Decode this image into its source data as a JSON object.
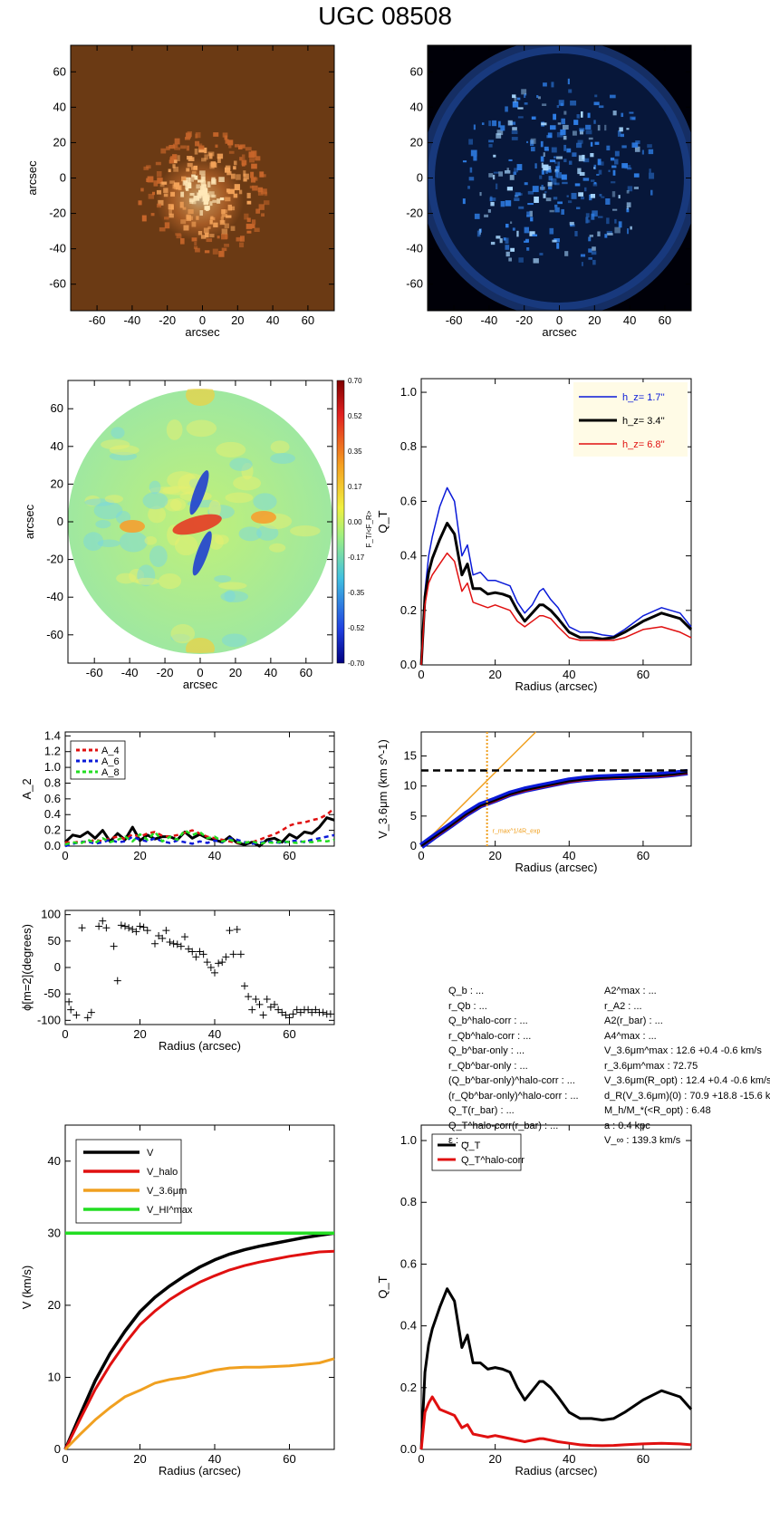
{
  "title": "UGC 08508",
  "colors": {
    "black": "#000000",
    "blue": "#0a1ad8",
    "red": "#e01010",
    "orange": "#f0a020",
    "green": "#22dd22",
    "legend_bg": "#fffbe6"
  },
  "info": {
    "left": [
      "Q_b : ...",
      "r_Qb : ...",
      "Q_b^halo-corr : ...",
      "r_Qb^halo-corr : ...",
      "Q_b^bar-only : ...",
      "r_Qb^bar-only : ...",
      "(Q_b^bar-only)^halo-corr : ...",
      "(r_Qb^bar-only)^halo-corr : ...",
      "Q_T(r_bar) : ...",
      "Q_T^halo-corr(r_bar) : ...",
      "ε : ..."
    ],
    "right": [
      "A2^max : ...",
      "r_A2 : ...",
      "A2(r_bar) : ...",
      "A4^max : ...",
      "V_3.6μm^max : 12.6 +0.4 -0.6 km/s",
      "r_3.6μm^max : 72.75",
      "V_3.6μm(R_opt) : 12.4 +0.4 -0.6 km/s",
      "d_R(V_3.6μm)(0) : 70.9 +18.8 -15.6 km/s/kpc",
      "M_h/M_*(<R_opt) : 6.48",
      "a : 0.4 kpc",
      "V_∞ : 139.3 km/s"
    ]
  },
  "chart_data": [
    {
      "type": "heatmap",
      "panel": "optical-image",
      "xlabel": "arcsec",
      "ylabel": "arcsec",
      "xlim": [
        -75,
        75
      ],
      "ylim": [
        -75,
        75
      ],
      "xticks": [
        -60,
        -40,
        -20,
        0,
        20,
        40,
        60
      ],
      "yticks": [
        -60,
        -40,
        -20,
        0,
        20,
        40,
        60
      ],
      "colormap": "copper"
    },
    {
      "type": "heatmap",
      "panel": "3.6um-image",
      "xlabel": "arcsec",
      "ylabel": "",
      "xlim": [
        -75,
        75
      ],
      "ylim": [
        -75,
        75
      ],
      "xticks": [
        -60,
        -40,
        -20,
        0,
        20,
        40,
        60
      ],
      "yticks": [
        -60,
        -40,
        -20,
        0,
        20,
        40,
        60
      ],
      "colormap": "blue"
    },
    {
      "type": "heatmap",
      "panel": "force-ratio-map",
      "xlabel": "arcsec",
      "ylabel": "arcsec",
      "xlim": [
        -75,
        75
      ],
      "ylim": [
        -75,
        75
      ],
      "xticks": [
        -60,
        -40,
        -20,
        0,
        20,
        40,
        60
      ],
      "yticks": [
        -60,
        -40,
        -20,
        0,
        20,
        40,
        60
      ],
      "colorbar_label": "F_T/<F_R>",
      "colorbar_ticks": [
        "0.70",
        "0.52",
        "0.35",
        "0.17",
        "0.00",
        "-0.17",
        "-0.35",
        "-0.52",
        "-0.70"
      ]
    },
    {
      "type": "line",
      "panel": "QT-hz",
      "xlabel": "Radius (arcsec)",
      "ylabel": "Q_T",
      "xlim": [
        0,
        73
      ],
      "ylim": [
        0,
        1.05
      ],
      "xticks": [
        0,
        20,
        40,
        60
      ],
      "yticks": [
        0.0,
        0.2,
        0.4,
        0.6,
        0.8,
        1.0
      ],
      "legend": "top-right",
      "x": [
        0,
        1,
        2,
        3,
        5,
        7,
        9,
        11,
        12.5,
        14,
        16,
        18,
        20,
        22,
        24,
        26,
        28,
        30,
        32,
        33,
        35,
        37,
        40,
        43,
        46,
        49,
        52,
        55,
        60,
        65,
        70,
        73
      ],
      "series": [
        {
          "name": "h_z= 1.7''",
          "color": "#0a1ad8",
          "width": 1.5,
          "values": [
            0.0,
            0.27,
            0.4,
            0.47,
            0.58,
            0.65,
            0.6,
            0.4,
            0.44,
            0.33,
            0.34,
            0.31,
            0.31,
            0.3,
            0.29,
            0.23,
            0.19,
            0.22,
            0.27,
            0.28,
            0.24,
            0.21,
            0.14,
            0.12,
            0.12,
            0.11,
            0.105,
            0.13,
            0.18,
            0.21,
            0.19,
            0.14
          ]
        },
        {
          "name": "h_z= 3.4''",
          "color": "#000000",
          "width": 3,
          "values": [
            0.0,
            0.25,
            0.34,
            0.39,
            0.46,
            0.52,
            0.48,
            0.33,
            0.37,
            0.28,
            0.28,
            0.26,
            0.265,
            0.26,
            0.25,
            0.2,
            0.16,
            0.19,
            0.22,
            0.22,
            0.2,
            0.17,
            0.12,
            0.1,
            0.1,
            0.095,
            0.1,
            0.12,
            0.16,
            0.19,
            0.17,
            0.13
          ]
        },
        {
          "name": "h_z= 6.8''",
          "color": "#e01010",
          "width": 1.5,
          "values": [
            0.0,
            0.22,
            0.3,
            0.33,
            0.37,
            0.41,
            0.38,
            0.27,
            0.3,
            0.23,
            0.22,
            0.21,
            0.22,
            0.21,
            0.2,
            0.16,
            0.14,
            0.16,
            0.18,
            0.18,
            0.17,
            0.14,
            0.1,
            0.09,
            0.09,
            0.09,
            0.09,
            0.1,
            0.13,
            0.14,
            0.12,
            0.1
          ]
        }
      ]
    },
    {
      "type": "line",
      "panel": "A2",
      "xlabel": "",
      "ylabel": "A_2",
      "xlim": [
        0,
        72
      ],
      "ylim": [
        0,
        1.45
      ],
      "xticks": [
        0,
        20,
        40,
        60
      ],
      "yticks": [
        0.0,
        0.2,
        0.4,
        0.6,
        0.8,
        1.0,
        1.2,
        1.4
      ],
      "legend": "top-left",
      "x": [
        0,
        2,
        4,
        6,
        8,
        10,
        12,
        14,
        16,
        18,
        20,
        22,
        24,
        26,
        28,
        30,
        32,
        34,
        36,
        38,
        40,
        42,
        44,
        46,
        48,
        50,
        52,
        54,
        56,
        58,
        60,
        62,
        64,
        66,
        68,
        70,
        72
      ],
      "series": [
        {
          "name": "",
          "color": "#000000",
          "width": 3,
          "dash": "",
          "values": [
            0.05,
            0.14,
            0.12,
            0.18,
            0.1,
            0.2,
            0.06,
            0.16,
            0.08,
            0.24,
            0.07,
            0.14,
            0.09,
            0.12,
            0.12,
            0.08,
            0.18,
            0.1,
            0.15,
            0.1,
            0.08,
            0.05,
            0.12,
            0.04,
            0.02,
            0.05,
            0.0,
            0.08,
            0.1,
            0.05,
            0.15,
            0.1,
            0.18,
            0.16,
            0.24,
            0.36,
            0.33
          ]
        },
        {
          "name": "A_4",
          "color": "#e01010",
          "width": 2.5,
          "dash": "5,4",
          "values": [
            0.05,
            0.04,
            0.06,
            0.05,
            0.08,
            0.06,
            0.1,
            0.12,
            0.09,
            0.15,
            0.12,
            0.16,
            0.18,
            0.13,
            0.12,
            0.14,
            0.17,
            0.2,
            0.16,
            0.12,
            0.1,
            0.08,
            0.06,
            0.04,
            0.05,
            0.05,
            0.08,
            0.12,
            0.15,
            0.2,
            0.26,
            0.29,
            0.3,
            0.33,
            0.35,
            0.4,
            0.48
          ]
        },
        {
          "name": "A_6",
          "color": "#0a1ad8",
          "width": 2.5,
          "dash": "5,4",
          "values": [
            0.0,
            0.03,
            0.05,
            0.06,
            0.03,
            0.05,
            0.08,
            0.05,
            0.06,
            0.12,
            0.08,
            0.06,
            0.1,
            0.06,
            0.04,
            0.07,
            0.05,
            0.03,
            0.06,
            0.04,
            0.07,
            0.05,
            0.1,
            0.08,
            0.05,
            0.03,
            0.04,
            0.06,
            0.05,
            0.04,
            0.06,
            0.07,
            0.05,
            0.08,
            0.1,
            0.12,
            0.14
          ]
        },
        {
          "name": "A_8",
          "color": "#22dd22",
          "width": 2.5,
          "dash": "5,4",
          "values": [
            0.02,
            0.05,
            0.03,
            0.08,
            0.04,
            0.1,
            0.05,
            0.08,
            0.12,
            0.06,
            0.15,
            0.08,
            0.18,
            0.06,
            0.12,
            0.08,
            0.2,
            0.14,
            0.18,
            0.1,
            0.12,
            0.06,
            0.08,
            0.05,
            0.04,
            0.06,
            0.03,
            0.05,
            0.04,
            0.06,
            0.05,
            0.04,
            0.06,
            0.05,
            0.07,
            0.06,
            0.08
          ]
        }
      ]
    },
    {
      "type": "line",
      "panel": "V3.6um",
      "xlabel": "Radius (arcsec)",
      "ylabel": "V_3.6μm (km s^-1)",
      "xlim": [
        0,
        73
      ],
      "ylim": [
        0,
        19
      ],
      "xticks": [
        0,
        20,
        40,
        60
      ],
      "yticks": [
        0,
        5,
        10,
        15
      ],
      "x": [
        0,
        4,
        8,
        12,
        16,
        20,
        24,
        28,
        32,
        36,
        40,
        44,
        48,
        52,
        56,
        60,
        64,
        68,
        72
      ],
      "series": [
        {
          "name": "",
          "color": "#0a1ad8",
          "width": 7,
          "values": [
            0,
            1.8,
            3.5,
            5.3,
            6.8,
            7.7,
            8.7,
            9.4,
            9.9,
            10.4,
            10.9,
            11.2,
            11.4,
            11.5,
            11.6,
            11.7,
            11.8,
            12.0,
            12.3
          ]
        },
        {
          "name": "",
          "color": "#e01010",
          "width": 2,
          "values": [
            0,
            1.6,
            3.3,
            5.1,
            6.6,
            7.5,
            8.5,
            9.2,
            9.7,
            10.2,
            10.7,
            11.0,
            11.2,
            11.3,
            11.4,
            11.5,
            11.6,
            11.8,
            12.1
          ]
        },
        {
          "name": "",
          "color": "#000000",
          "width": 2,
          "values": [
            0,
            1.7,
            3.4,
            5.2,
            6.7,
            7.6,
            8.6,
            9.3,
            9.8,
            10.3,
            10.8,
            11.1,
            11.3,
            11.4,
            11.5,
            11.6,
            11.7,
            11.9,
            12.2
          ]
        }
      ],
      "orange_line": {
        "x": [
          0,
          31
        ],
        "y": [
          0,
          19
        ]
      },
      "hline_y": 12.6,
      "vline_x": 17.8,
      "vline_label": "r_max^1/4R_exp"
    },
    {
      "type": "scatter",
      "panel": "phase",
      "xlabel": "Radius (arcsec)",
      "ylabel": "ϕ[m=2](degrees)",
      "xlim": [
        0,
        72
      ],
      "ylim": [
        -108,
        108
      ],
      "xticks": [
        0,
        20,
        40,
        60
      ],
      "yticks": [
        -100,
        -50,
        0,
        50,
        100
      ],
      "x": [
        1,
        1.5,
        3,
        4.5,
        6,
        7,
        9,
        10,
        11,
        13,
        14,
        15,
        16,
        17,
        18,
        19,
        20,
        21,
        22,
        24,
        25,
        26,
        27,
        28,
        29,
        30,
        31,
        32,
        33,
        34,
        35,
        36,
        37,
        38,
        39,
        40,
        41,
        42,
        43,
        44,
        45,
        46,
        47,
        48,
        49,
        50,
        51,
        52,
        53,
        54,
        55,
        56,
        57,
        58,
        59,
        60,
        61,
        62,
        63,
        64,
        65,
        66,
        67,
        68,
        69,
        70,
        71
      ],
      "y": [
        -65,
        -80,
        -90,
        75,
        -95,
        -85,
        78,
        88,
        75,
        40,
        -25,
        80,
        78,
        75,
        72,
        68,
        78,
        76,
        70,
        45,
        60,
        55,
        70,
        48,
        45,
        44,
        40,
        58,
        35,
        30,
        20,
        30,
        25,
        10,
        0,
        -10,
        8,
        10,
        20,
        70,
        25,
        72,
        25,
        -35,
        -55,
        -80,
        -60,
        -70,
        -90,
        -60,
        -75,
        -70,
        -80,
        -85,
        -90,
        -95,
        -88,
        -80,
        -85,
        -80,
        -80,
        -85,
        -80,
        -85,
        -85,
        -88,
        -88
      ]
    },
    {
      "type": "line",
      "panel": "rotation-curve",
      "xlabel": "Radius (arcsec)",
      "ylabel": "V (km/s)",
      "xlim": [
        0,
        72
      ],
      "ylim": [
        0,
        45
      ],
      "xticks": [
        0,
        20,
        40,
        60
      ],
      "yticks": [
        0,
        10,
        20,
        30,
        40
      ],
      "legend": "top-left",
      "x": [
        0,
        4,
        8,
        12,
        16,
        20,
        24,
        28,
        32,
        36,
        40,
        44,
        48,
        52,
        56,
        60,
        64,
        68,
        72
      ],
      "series": [
        {
          "name": "V",
          "color": "#000000",
          "width": 3.5,
          "values": [
            0,
            4.8,
            9.5,
            13.3,
            16.4,
            19.1,
            21.1,
            22.7,
            24.1,
            25.3,
            26.3,
            27.1,
            27.7,
            28.2,
            28.6,
            29.0,
            29.4,
            29.7,
            30.0
          ]
        },
        {
          "name": "V_halo",
          "color": "#e01010",
          "width": 3,
          "values": [
            0,
            4.2,
            8.3,
            11.7,
            14.7,
            17.3,
            19.2,
            20.8,
            22.1,
            23.2,
            24.1,
            24.9,
            25.5,
            26.0,
            26.4,
            26.8,
            27.1,
            27.4,
            27.5
          ]
        },
        {
          "name": "V_3.6μm",
          "color": "#f0a020",
          "width": 3,
          "values": [
            0,
            2.1,
            4.1,
            5.8,
            7.3,
            8.2,
            9.2,
            9.7,
            10.0,
            10.5,
            11.0,
            11.3,
            11.4,
            11.4,
            11.5,
            11.6,
            11.8,
            12.0,
            12.6
          ]
        },
        {
          "name": "V_HI^max",
          "color": "#22dd22",
          "width": 3.5,
          "values": [
            30,
            30,
            30,
            30,
            30,
            30,
            30,
            30,
            30,
            30,
            30,
            30,
            30,
            30,
            30,
            30,
            30,
            30,
            30
          ]
        }
      ]
    },
    {
      "type": "line",
      "panel": "QT-halo",
      "xlabel": "Radius (arcsec)",
      "ylabel": "Q_T",
      "xlim": [
        0,
        73
      ],
      "ylim": [
        0,
        1.05
      ],
      "xticks": [
        0,
        20,
        40,
        60
      ],
      "yticks": [
        0.0,
        0.2,
        0.4,
        0.6,
        0.8,
        1.0
      ],
      "legend": "top-left",
      "x": [
        0,
        1,
        2,
        3,
        5,
        7,
        9,
        11,
        12.5,
        14,
        16,
        18,
        20,
        22,
        24,
        26,
        28,
        30,
        32,
        33,
        35,
        37,
        40,
        43,
        46,
        49,
        52,
        55,
        60,
        65,
        70,
        73
      ],
      "series": [
        {
          "name": "Q_T",
          "color": "#000000",
          "width": 3,
          "values": [
            0.0,
            0.25,
            0.34,
            0.39,
            0.46,
            0.52,
            0.48,
            0.33,
            0.37,
            0.28,
            0.28,
            0.26,
            0.265,
            0.26,
            0.25,
            0.2,
            0.16,
            0.19,
            0.22,
            0.22,
            0.2,
            0.17,
            0.12,
            0.1,
            0.1,
            0.095,
            0.1,
            0.12,
            0.16,
            0.19,
            0.17,
            0.13
          ]
        },
        {
          "name": "Q_T^halo-corr",
          "color": "#e01010",
          "width": 3,
          "values": [
            0.0,
            0.12,
            0.15,
            0.17,
            0.13,
            0.12,
            0.11,
            0.07,
            0.08,
            0.05,
            0.045,
            0.04,
            0.045,
            0.04,
            0.035,
            0.03,
            0.025,
            0.03,
            0.035,
            0.035,
            0.03,
            0.025,
            0.02,
            0.015,
            0.013,
            0.012,
            0.013,
            0.015,
            0.018,
            0.02,
            0.018,
            0.015
          ]
        }
      ]
    }
  ]
}
